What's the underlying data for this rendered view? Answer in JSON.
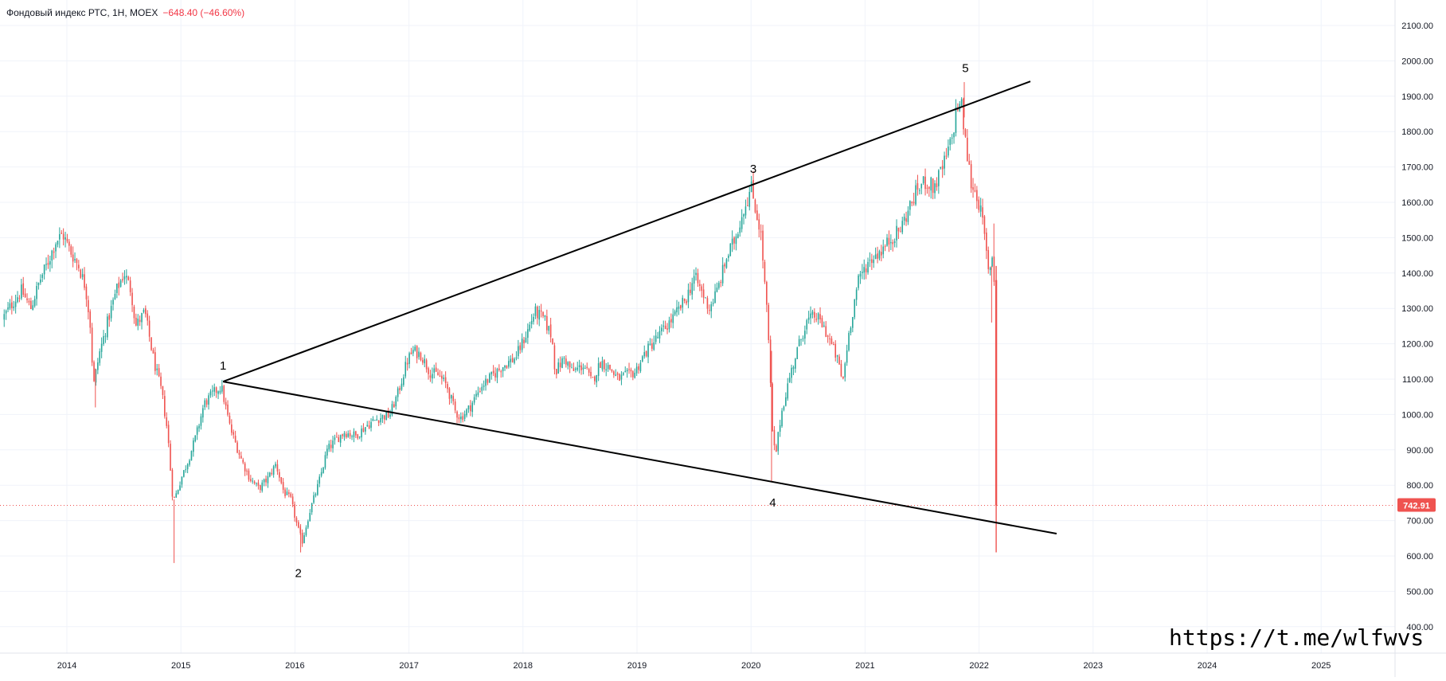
{
  "header": {
    "symbol_line": "Фондовый индекс РТС, 1Н, MOEX",
    "change": "−648.40 (−46.60%)"
  },
  "watermark": "https://t.me/wlfwvs",
  "colors": {
    "up": "#26a69a",
    "down": "#ef5350",
    "grid": "#f0f3fa",
    "axis_text": "#131722",
    "price_line": "#ef5350",
    "trendline": "#000000"
  },
  "chart_data": {
    "type": "candlestick",
    "title": "",
    "xlabel": "",
    "ylabel": "",
    "x_ticks": [
      "2014",
      "2015",
      "2016",
      "2017",
      "2018",
      "2019",
      "2020",
      "2021",
      "2022",
      "2023",
      "2024",
      "2025"
    ],
    "x_tick_years": [
      2014.0,
      2015.0,
      2016.0,
      2017.0,
      2018.0,
      2019.0,
      2020.0,
      2021.0,
      2022.0,
      2023.0,
      2024.0,
      2025.0
    ],
    "y_ticks": [
      "400.00",
      "500.00",
      "600.00",
      "700.00",
      "800.00",
      "900.00",
      "1000.00",
      "1100.00",
      "1200.00",
      "1300.00",
      "1400.00",
      "1500.00",
      "1600.00",
      "1700.00",
      "1800.00",
      "1900.00",
      "2000.00",
      "2100.00"
    ],
    "y_tick_values": [
      400,
      500,
      600,
      700,
      800,
      900,
      1000,
      1100,
      1200,
      1300,
      1400,
      1500,
      1600,
      1700,
      1800,
      1900,
      2000,
      2100
    ],
    "ylim": [
      340,
      2165
    ],
    "xlim": [
      2013.45,
      2025.8
    ],
    "last_price": "742.91",
    "last_price_value": 742.91,
    "price_path": [
      [
        2013.45,
        1270
      ],
      [
        2013.55,
        1320
      ],
      [
        2013.62,
        1350
      ],
      [
        2013.7,
        1300
      ],
      [
        2013.78,
        1380
      ],
      [
        2013.85,
        1430
      ],
      [
        2013.92,
        1490
      ],
      [
        2013.98,
        1510
      ],
      [
        2014.05,
        1460
      ],
      [
        2014.12,
        1420
      ],
      [
        2014.18,
        1360
      ],
      [
        2014.22,
        1260
      ],
      [
        2014.25,
        1080
      ],
      [
        2014.3,
        1170
      ],
      [
        2014.38,
        1270
      ],
      [
        2014.45,
        1350
      ],
      [
        2014.52,
        1400
      ],
      [
        2014.58,
        1350
      ],
      [
        2014.62,
        1250
      ],
      [
        2014.7,
        1290
      ],
      [
        2014.78,
        1150
      ],
      [
        2014.85,
        1060
      ],
      [
        2014.9,
        950
      ],
      [
        2014.94,
        780
      ],
      [
        2014.96,
        760
      ],
      [
        2015.02,
        820
      ],
      [
        2015.08,
        870
      ],
      [
        2015.15,
        940
      ],
      [
        2015.22,
        1030
      ],
      [
        2015.3,
        1060
      ],
      [
        2015.37,
        1080
      ],
      [
        2015.45,
        960
      ],
      [
        2015.55,
        870
      ],
      [
        2015.62,
        820
      ],
      [
        2015.7,
        790
      ],
      [
        2015.78,
        820
      ],
      [
        2015.85,
        860
      ],
      [
        2015.92,
        780
      ],
      [
        2015.98,
        760
      ],
      [
        2016.04,
        680
      ],
      [
        2016.08,
        640
      ],
      [
        2016.15,
        730
      ],
      [
        2016.22,
        800
      ],
      [
        2016.3,
        900
      ],
      [
        2016.38,
        930
      ],
      [
        2016.45,
        950
      ],
      [
        2016.55,
        940
      ],
      [
        2016.65,
        970
      ],
      [
        2016.75,
        990
      ],
      [
        2016.85,
        1000
      ],
      [
        2016.92,
        1060
      ],
      [
        2017.0,
        1150
      ],
      [
        2017.05,
        1180
      ],
      [
        2017.12,
        1170
      ],
      [
        2017.2,
        1120
      ],
      [
        2017.28,
        1110
      ],
      [
        2017.35,
        1080
      ],
      [
        2017.42,
        1010
      ],
      [
        2017.47,
        990
      ],
      [
        2017.55,
        1020
      ],
      [
        2017.65,
        1080
      ],
      [
        2017.75,
        1110
      ],
      [
        2017.85,
        1140
      ],
      [
        2017.95,
        1160
      ],
      [
        2018.05,
        1230
      ],
      [
        2018.12,
        1290
      ],
      [
        2018.2,
        1270
      ],
      [
        2018.27,
        1220
      ],
      [
        2018.3,
        1120
      ],
      [
        2018.38,
        1160
      ],
      [
        2018.45,
        1120
      ],
      [
        2018.55,
        1140
      ],
      [
        2018.62,
        1090
      ],
      [
        2018.7,
        1150
      ],
      [
        2018.78,
        1130
      ],
      [
        2018.85,
        1100
      ],
      [
        2018.92,
        1110
      ],
      [
        2019.0,
        1120
      ],
      [
        2019.08,
        1170
      ],
      [
        2019.15,
        1200
      ],
      [
        2019.25,
        1240
      ],
      [
        2019.35,
        1280
      ],
      [
        2019.45,
        1330
      ],
      [
        2019.52,
        1390
      ],
      [
        2019.58,
        1350
      ],
      [
        2019.65,
        1300
      ],
      [
        2019.72,
        1350
      ],
      [
        2019.8,
        1440
      ],
      [
        2019.88,
        1500
      ],
      [
        2019.95,
        1580
      ],
      [
        2020.02,
        1640
      ],
      [
        2020.07,
        1560
      ],
      [
        2020.1,
        1520
      ],
      [
        2020.13,
        1400
      ],
      [
        2020.16,
        1270
      ],
      [
        2020.18,
        1150
      ],
      [
        2020.2,
        960
      ],
      [
        2020.23,
        880
      ],
      [
        2020.28,
        1000
      ],
      [
        2020.35,
        1100
      ],
      [
        2020.42,
        1180
      ],
      [
        2020.5,
        1260
      ],
      [
        2020.58,
        1280
      ],
      [
        2020.65,
        1250
      ],
      [
        2020.72,
        1200
      ],
      [
        2020.78,
        1150
      ],
      [
        2020.82,
        1090
      ],
      [
        2020.87,
        1220
      ],
      [
        2020.95,
        1370
      ],
      [
        2021.02,
        1420
      ],
      [
        2021.1,
        1450
      ],
      [
        2021.18,
        1470
      ],
      [
        2021.25,
        1500
      ],
      [
        2021.32,
        1520
      ],
      [
        2021.4,
        1580
      ],
      [
        2021.48,
        1640
      ],
      [
        2021.55,
        1660
      ],
      [
        2021.62,
        1640
      ],
      [
        2021.7,
        1700
      ],
      [
        2021.78,
        1780
      ],
      [
        2021.82,
        1870
      ],
      [
        2021.86,
        1880
      ],
      [
        2021.9,
        1760
      ],
      [
        2021.95,
        1650
      ],
      [
        2022.0,
        1620
      ],
      [
        2022.05,
        1540
      ],
      [
        2022.1,
        1400
      ],
      [
        2022.13,
        1450
      ],
      [
        2022.145,
        1430
      ],
      [
        2022.148,
        1380
      ]
    ],
    "crash_candle": {
      "x": 2022.15,
      "open": 1380,
      "high": 1420,
      "low": 610,
      "close": 742.91
    },
    "trendlines": [
      {
        "from": [
          2015.37,
          1093
        ],
        "to": [
          2022.45,
          1942
        ]
      },
      {
        "from": [
          2015.37,
          1093
        ],
        "to": [
          2022.68,
          663
        ]
      }
    ],
    "wave_labels": [
      {
        "text": "1",
        "x": 2015.37,
        "y": 1093,
        "pos": "above"
      },
      {
        "text": "2",
        "x": 2016.03,
        "y": 610,
        "pos": "below"
      },
      {
        "text": "3",
        "x": 2020.02,
        "y": 1650,
        "pos": "above"
      },
      {
        "text": "4",
        "x": 2020.19,
        "y": 810,
        "pos": "below"
      },
      {
        "text": "5",
        "x": 2021.88,
        "y": 1935,
        "pos": "above"
      }
    ],
    "grid": true,
    "legend": "none"
  }
}
